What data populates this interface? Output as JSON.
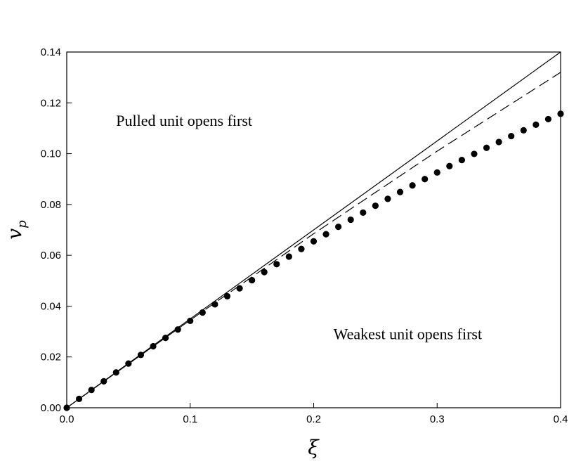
{
  "chart_data": {
    "type": "line",
    "title": "",
    "xlabel": "ξ",
    "ylabel_base": "v",
    "ylabel_sub": "p",
    "xlim": [
      0,
      0.4
    ],
    "ylim": [
      0,
      0.14
    ],
    "x_ticks": [
      "0.0",
      "0.1",
      "0.2",
      "0.3",
      "0.4"
    ],
    "y_ticks": [
      "0.00",
      "0.02",
      "0.04",
      "0.06",
      "0.08",
      "0.10",
      "0.12",
      "0.14"
    ],
    "grid": false,
    "annotations": [
      {
        "text": "Pulled unit opens first",
        "x": 0.04,
        "y": 0.111
      },
      {
        "text": "Weakest unit opens first",
        "x": 0.216,
        "y": 0.027
      }
    ],
    "series": [
      {
        "style": "solid",
        "x": [
          0,
          0.4
        ],
        "y": [
          0,
          0.14
        ]
      },
      {
        "style": "dashed",
        "x": [
          0,
          0.1,
          0.2,
          0.3,
          0.4
        ],
        "y": [
          0,
          0.0345,
          0.0685,
          0.101,
          0.132
        ]
      },
      {
        "style": "dots",
        "x": [
          0,
          0.01,
          0.02,
          0.03,
          0.04,
          0.05,
          0.06,
          0.07,
          0.08,
          0.09,
          0.1,
          0.11,
          0.12,
          0.13,
          0.14,
          0.15,
          0.16,
          0.17,
          0.18,
          0.19,
          0.2,
          0.21,
          0.22,
          0.23,
          0.24,
          0.25,
          0.26,
          0.27,
          0.28,
          0.29,
          0.3,
          0.31,
          0.32,
          0.33,
          0.34,
          0.35,
          0.36,
          0.37,
          0.38,
          0.39,
          0.4
        ],
        "y": [
          0,
          0.0035,
          0.007,
          0.0104,
          0.0139,
          0.0174,
          0.0208,
          0.0242,
          0.0275,
          0.0308,
          0.0342,
          0.0375,
          0.0407,
          0.0439,
          0.047,
          0.0502,
          0.0534,
          0.0565,
          0.0595,
          0.0625,
          0.0655,
          0.0683,
          0.0712,
          0.074,
          0.0768,
          0.0795,
          0.0822,
          0.0849,
          0.0875,
          0.09,
          0.0926,
          0.0951,
          0.0975,
          0.0999,
          0.1023,
          0.1046,
          0.1069,
          0.1092,
          0.1114,
          0.1136,
          0.1157
        ]
      }
    ]
  }
}
